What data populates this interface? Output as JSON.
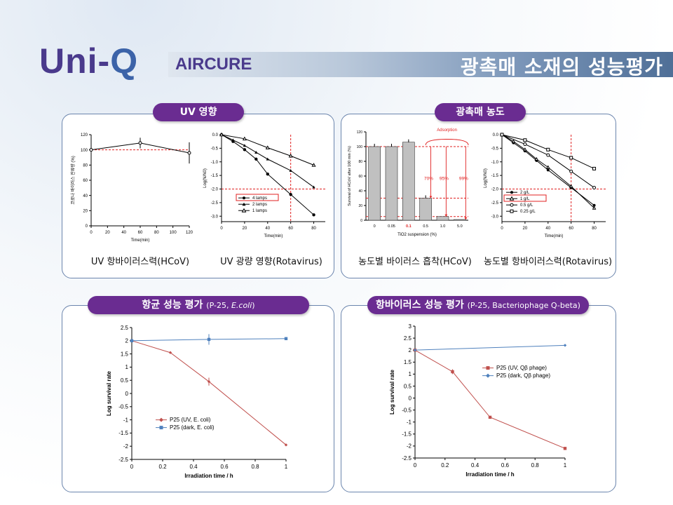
{
  "header": {
    "logo_text": "Uni-",
    "logo_q": "Q",
    "brand": "AIRCURE",
    "title": "광촉매 소재의 성능평가"
  },
  "panels": {
    "uv": {
      "label": "UV 영향",
      "caption_left": "UV 항바이러스력(HCoV)",
      "caption_right": "UV 광량 영향(Rotavirus)"
    },
    "photocat": {
      "label": "광촉매 농도",
      "caption_left": "농도별 바이러스 흡착(HCoV)",
      "caption_right": "농도별 항바이러스력(Rotavirus)"
    },
    "antibac": {
      "label": "항균 성능 평가 ",
      "label_small": "(P-25, ",
      "label_italic": "E.coli",
      "label_end": ")"
    },
    "antivir": {
      "label": "항바이러스 성능 평가 ",
      "label_small": "(P-25, Bacteriophage Q-beta)"
    }
  },
  "chart_data": [
    {
      "id": "uv-hcov",
      "type": "line",
      "xlabel": "Time(min)",
      "ylabel": "코로나 바이러스 잔류량 (%)",
      "xlim": [
        0,
        120
      ],
      "ylim": [
        0,
        120
      ],
      "xticks": [
        0,
        20,
        40,
        60,
        80,
        100,
        120
      ],
      "yticks": [
        0,
        20,
        40,
        60,
        80,
        100,
        120
      ],
      "reference_line_y": 100,
      "series": [
        {
          "x": [
            0,
            60,
            120
          ],
          "y": [
            100,
            109,
            96
          ],
          "err": [
            2,
            7,
            14
          ]
        }
      ]
    },
    {
      "id": "uv-rotavirus",
      "type": "line",
      "xlabel": "Time(min)",
      "ylabel": "Log(N/N0)",
      "xlim": [
        0,
        90
      ],
      "ylim": [
        -3.2,
        0
      ],
      "xticks": [
        0,
        20,
        40,
        60,
        80
      ],
      "yticks": [
        0.0,
        -0.5,
        -1.0,
        -1.5,
        -2.0,
        -2.5,
        -3.0
      ],
      "reference_line_x": 60,
      "reference_line_y": -2.0,
      "series": [
        {
          "name": "4 lamps",
          "x": [
            0,
            10,
            20,
            30,
            40,
            60,
            80
          ],
          "y": [
            0,
            -0.25,
            -0.55,
            -0.9,
            -1.45,
            -2.2,
            -2.95
          ]
        },
        {
          "name": "2 lamps",
          "x": [
            0,
            10,
            20,
            30,
            40,
            60,
            80
          ],
          "y": [
            0,
            -0.2,
            -0.4,
            -0.65,
            -0.9,
            -1.32,
            -1.93
          ]
        },
        {
          "name": "1 lamps",
          "x": [
            0,
            20,
            40,
            60,
            80
          ],
          "y": [
            0,
            -0.15,
            -0.48,
            -0.78,
            -1.12
          ]
        }
      ]
    },
    {
      "id": "adsorption-hcov",
      "type": "bar",
      "xlabel": "TiO2 suspension (%)",
      "ylabel": "Survival of HCoV after 100 min (%)",
      "categories": [
        "0",
        "0.05",
        "0.1",
        "0.5",
        "1.0",
        "5.0"
      ],
      "values": [
        100,
        100,
        106,
        30,
        5,
        1
      ],
      "ylim": [
        0,
        120
      ],
      "yticks": [
        0,
        20,
        40,
        60,
        80,
        100,
        120
      ],
      "annotations": [
        "Adsorption",
        "70%",
        "95%",
        "99%"
      ]
    },
    {
      "id": "conc-rotavirus",
      "type": "line",
      "xlabel": "Time(min)",
      "ylabel": "Log(N/N0)",
      "xlim": [
        0,
        90
      ],
      "ylim": [
        -3.2,
        0
      ],
      "xticks": [
        0,
        20,
        40,
        60,
        80
      ],
      "yticks": [
        0.0,
        -0.5,
        -1.0,
        -1.5,
        -2.0,
        -2.5,
        -3.0
      ],
      "reference_line_x": 60,
      "reference_line_y": -2.0,
      "series": [
        {
          "name": "2 g/L",
          "x": [
            0,
            10,
            20,
            30,
            40,
            60,
            80
          ],
          "y": [
            0,
            -0.3,
            -0.6,
            -0.95,
            -1.3,
            -1.95,
            -2.6
          ]
        },
        {
          "name": "1 g/L",
          "x": [
            0,
            10,
            20,
            30,
            40,
            60,
            80
          ],
          "y": [
            0,
            -0.25,
            -0.55,
            -0.9,
            -1.2,
            -1.9,
            -2.7
          ]
        },
        {
          "name": "0.5 g/L",
          "x": [
            0,
            20,
            40,
            60,
            80
          ],
          "y": [
            0,
            -0.35,
            -0.75,
            -1.35,
            -1.95
          ]
        },
        {
          "name": "0.25 g/L",
          "x": [
            0,
            20,
            40,
            60,
            80
          ],
          "y": [
            0,
            -0.2,
            -0.55,
            -0.85,
            -1.25
          ]
        }
      ]
    },
    {
      "id": "antibac-ecoli",
      "type": "line",
      "xlabel": "Irradiation time / h",
      "ylabel": "Log survival rate",
      "xlim": [
        0,
        1
      ],
      "ylim": [
        -2.5,
        2.5
      ],
      "xticks": [
        0,
        0.2,
        0.4,
        0.6,
        0.8,
        1
      ],
      "yticks": [
        2.5,
        2,
        1.5,
        1,
        0.5,
        0,
        -0.5,
        -1,
        -1.5,
        -2,
        -2.5
      ],
      "series": [
        {
          "name": "P25 (UV, E. coli)",
          "color": "#c0504d",
          "x": [
            0,
            0.25,
            0.5,
            1
          ],
          "y": [
            2,
            1.55,
            0.45,
            -1.95
          ]
        },
        {
          "name": "P25 (dark, E. coli)",
          "color": "#4f81bd",
          "x": [
            0,
            0.5,
            1
          ],
          "y": [
            2,
            2.05,
            2.08
          ]
        }
      ]
    },
    {
      "id": "antivir-qbeta",
      "type": "line",
      "xlabel": "Irradiation time / h",
      "ylabel": "Log survival rate",
      "xlim": [
        0,
        1
      ],
      "ylim": [
        -2.5,
        3
      ],
      "xticks": [
        0,
        0.2,
        0.4,
        0.6,
        0.8,
        1
      ],
      "yticks": [
        3,
        2.5,
        2,
        1.5,
        1,
        0.5,
        0,
        -0.5,
        -1,
        -1.5,
        -2,
        -2.5
      ],
      "series": [
        {
          "name": "P25 (UV, Qβ phage)",
          "color": "#c0504d",
          "x": [
            0,
            0.25,
            0.5,
            1
          ],
          "y": [
            2,
            1.1,
            -0.8,
            -2.1
          ]
        },
        {
          "name": "P25 (dark, Qβ phage)",
          "color": "#4f81bd",
          "x": [
            0,
            1
          ],
          "y": [
            2,
            2.2
          ]
        }
      ]
    }
  ]
}
